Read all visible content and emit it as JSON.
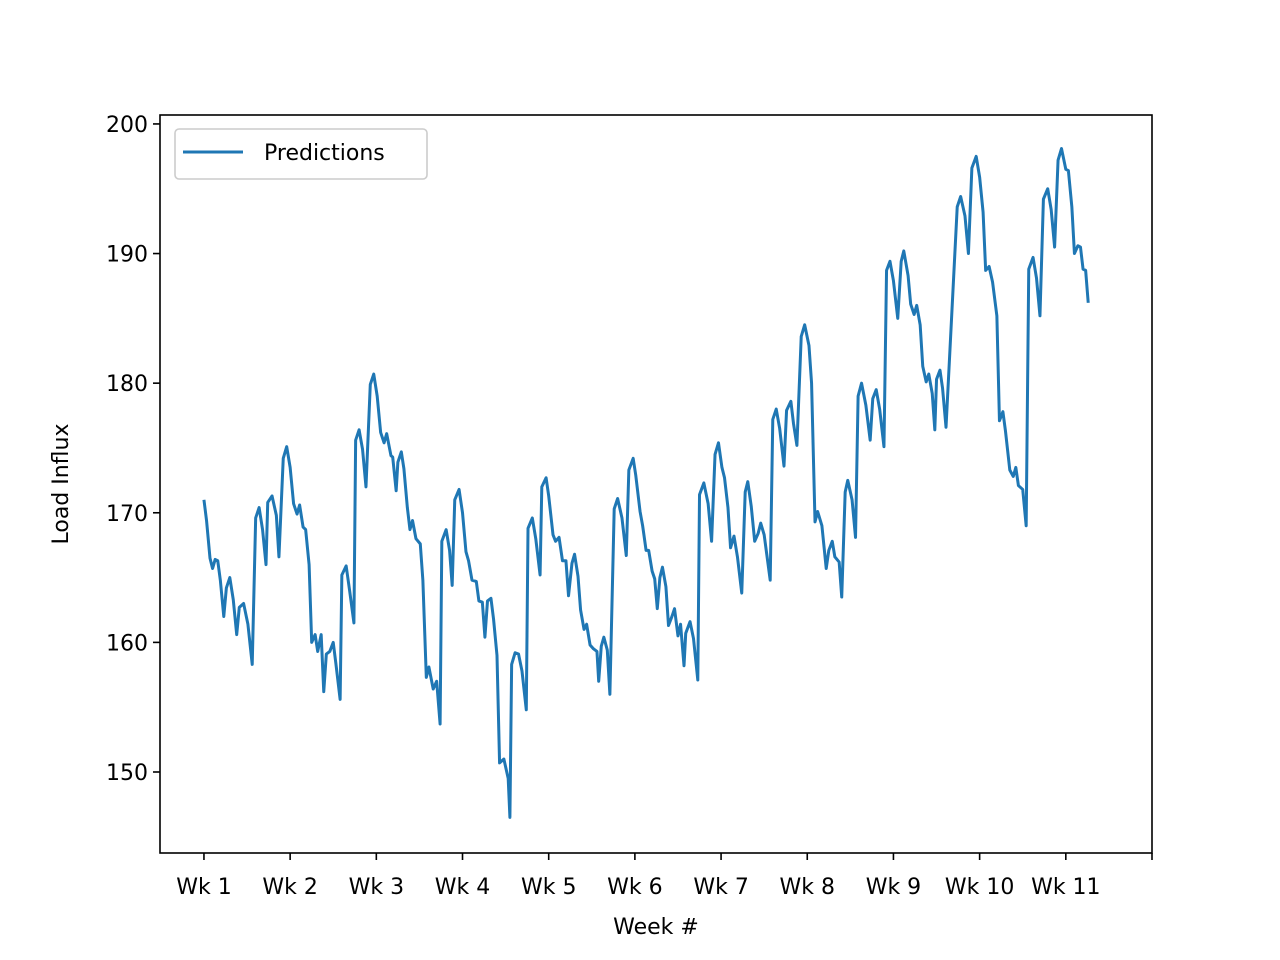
{
  "chart_data": {
    "type": "line",
    "xlabel": "Week #",
    "ylabel": "Load Influx",
    "xlim": [
      -0.51,
      11.0
    ],
    "ylim": [
      143.75,
      200.69
    ],
    "xticks": [
      {
        "value": 0,
        "label": "Wk 1"
      },
      {
        "value": 1,
        "label": "Wk 2"
      },
      {
        "value": 2,
        "label": "Wk 3"
      },
      {
        "value": 3,
        "label": "Wk 4"
      },
      {
        "value": 4,
        "label": "Wk 5"
      },
      {
        "value": 5,
        "label": "Wk 6"
      },
      {
        "value": 6,
        "label": "Wk 7"
      },
      {
        "value": 7,
        "label": "Wk 8"
      },
      {
        "value": 8,
        "label": "Wk 9"
      },
      {
        "value": 9,
        "label": "Wk 10"
      },
      {
        "value": 10,
        "label": "Wk 11"
      },
      {
        "value": 11,
        "label": null
      }
    ],
    "yticks": [
      150,
      160,
      170,
      180,
      190,
      200
    ],
    "legend": "upper left",
    "x": [
      0.0,
      0.03,
      0.07,
      0.1,
      0.13,
      0.16,
      0.19,
      0.23,
      0.26,
      0.3,
      0.34,
      0.38,
      0.41,
      0.46,
      0.51,
      0.56,
      0.6,
      0.64,
      0.68,
      0.72,
      0.74,
      0.79,
      0.84,
      0.87,
      0.92,
      0.96,
      1.0,
      1.04,
      1.08,
      1.11,
      1.15,
      1.18,
      1.22,
      1.25,
      1.29,
      1.32,
      1.36,
      1.39,
      1.42,
      1.46,
      1.5,
      1.53,
      1.58,
      1.6,
      1.65,
      1.69,
      1.74,
      1.76,
      1.8,
      1.84,
      1.88,
      1.93,
      1.97,
      2.01,
      2.05,
      2.09,
      2.12,
      2.17,
      2.19,
      2.23,
      2.25,
      2.29,
      2.32,
      2.36,
      2.39,
      2.42,
      2.46,
      2.51,
      2.54,
      2.58,
      2.61,
      2.66,
      2.7,
      2.74,
      2.76,
      2.81,
      2.85,
      2.88,
      2.91,
      2.96,
      3.0,
      3.04,
      3.07,
      3.11,
      3.16,
      3.19,
      3.23,
      3.26,
      3.29,
      3.33,
      3.36,
      3.4,
      3.43,
      3.48,
      3.53,
      3.55,
      3.57,
      3.61,
      3.65,
      3.69,
      3.74,
      3.76,
      3.81,
      3.85,
      3.9,
      3.92,
      3.97,
      4.0,
      4.05,
      4.08,
      4.12,
      4.16,
      4.2,
      4.23,
      4.27,
      4.3,
      4.34,
      4.37,
      4.41,
      4.44,
      4.48,
      4.52,
      4.56,
      4.58,
      4.61,
      4.64,
      4.68,
      4.71,
      4.76,
      4.8,
      4.85,
      4.9,
      4.93,
      4.98,
      5.01,
      5.06,
      5.09,
      5.13,
      5.16,
      5.2,
      5.23,
      5.26,
      5.29,
      5.32,
      5.36,
      5.39,
      5.43,
      5.46,
      5.5,
      5.53,
      5.57,
      5.59,
      5.64,
      5.68,
      5.73,
      5.75,
      5.8,
      5.85,
      5.89,
      5.93,
      5.97,
      6.01,
      6.04,
      6.08,
      6.11,
      6.15,
      6.19,
      6.24,
      6.28,
      6.31,
      6.35,
      6.39,
      6.43,
      6.46,
      6.5,
      6.53,
      6.57,
      6.6,
      6.64,
      6.68,
      6.73,
      6.76,
      6.81,
      6.84,
      6.88,
      6.93,
      6.97,
      7.02,
      7.05,
      7.09,
      7.12,
      7.17,
      7.22,
      7.25,
      7.29,
      7.32,
      7.37,
      7.4,
      7.44,
      7.47,
      7.52,
      7.56,
      7.59,
      7.63,
      7.68,
      7.73,
      7.76,
      7.8,
      7.84,
      7.89,
      7.92,
      7.96,
      8.0,
      8.05,
      8.09,
      8.12,
      8.17,
      8.2,
      8.24,
      8.27,
      8.31,
      8.34,
      8.38,
      8.41,
      8.45,
      8.48,
      8.5,
      8.54,
      8.57,
      8.61,
      8.74,
      8.78,
      8.83,
      8.87,
      8.91,
      8.96,
      9.0,
      9.04,
      9.07,
      9.11,
      9.15,
      9.2,
      9.23,
      9.27,
      9.3,
      9.35,
      9.39,
      9.42,
      9.45,
      9.5,
      9.54,
      9.57,
      9.62,
      9.66,
      9.7,
      9.74,
      9.79,
      9.83,
      9.87,
      9.91,
      9.95,
      10.0,
      10.03,
      10.07,
      10.1,
      10.14,
      10.17,
      10.2,
      10.23,
      10.26
    ],
    "series": [
      {
        "name": "Predictions",
        "color": "#1f77b4",
        "values": [
          171.0,
          169.4,
          166.5,
          165.7,
          166.4,
          166.3,
          164.8,
          162.0,
          164.2,
          165.0,
          163.3,
          160.6,
          162.7,
          163.0,
          161.4,
          158.3,
          169.6,
          170.4,
          168.7,
          166.0,
          170.8,
          171.3,
          169.8,
          166.6,
          174.2,
          175.1,
          173.5,
          170.7,
          169.9,
          170.6,
          168.9,
          168.7,
          166.0,
          160.0,
          160.6,
          159.3,
          160.6,
          156.2,
          159.1,
          159.3,
          160.0,
          158.4,
          155.6,
          165.2,
          165.9,
          164.0,
          161.5,
          175.6,
          176.4,
          174.9,
          172.0,
          179.9,
          180.7,
          179.0,
          176.2,
          175.4,
          176.1,
          174.4,
          174.3,
          171.7,
          173.9,
          174.7,
          173.4,
          170.4,
          168.7,
          169.4,
          168.0,
          167.6,
          164.8,
          157.3,
          158.1,
          156.4,
          157.0,
          153.7,
          167.8,
          168.7,
          167.1,
          164.4,
          171.0,
          171.8,
          170.0,
          167.0,
          166.3,
          164.8,
          164.7,
          163.2,
          163.1,
          160.4,
          163.2,
          163.4,
          161.8,
          159.0,
          150.7,
          151.0,
          149.5,
          146.5,
          158.3,
          159.2,
          159.1,
          157.8,
          154.8,
          168.8,
          169.6,
          168.0,
          165.2,
          172.0,
          172.7,
          171.3,
          168.3,
          167.8,
          168.1,
          166.3,
          166.3,
          163.6,
          166.1,
          166.8,
          165.1,
          162.5,
          161.0,
          161.4,
          159.8,
          159.5,
          159.3,
          157.0,
          159.7,
          160.4,
          159.4,
          156.0,
          170.3,
          171.1,
          169.6,
          166.7,
          173.3,
          174.2,
          172.9,
          170.1,
          169.0,
          167.1,
          167.1,
          165.5,
          164.9,
          162.6,
          165.0,
          165.8,
          164.3,
          161.3,
          162.0,
          162.6,
          160.5,
          161.4,
          158.2,
          160.7,
          161.6,
          160.3,
          157.1,
          171.4,
          172.3,
          170.7,
          167.8,
          174.5,
          175.4,
          173.5,
          172.7,
          170.4,
          167.3,
          168.2,
          166.6,
          163.8,
          171.6,
          172.4,
          170.5,
          167.8,
          168.4,
          169.2,
          168.3,
          166.8,
          164.8,
          177.2,
          178.0,
          176.5,
          173.6,
          177.9,
          178.6,
          176.9,
          175.2,
          183.6,
          184.5,
          182.9,
          180.0,
          169.3,
          170.1,
          169.0,
          165.7,
          167.1,
          167.8,
          166.6,
          166.2,
          163.5,
          171.6,
          172.5,
          171.0,
          168.1,
          179.0,
          180.0,
          178.3,
          175.6,
          178.8,
          179.5,
          178.0,
          175.1,
          188.7,
          189.4,
          187.9,
          185.0,
          189.4,
          190.2,
          188.3,
          186.1,
          185.3,
          186.0,
          184.5,
          181.3,
          180.1,
          180.7,
          179.2,
          176.4,
          180.3,
          181.0,
          179.6,
          176.6,
          193.6,
          194.4,
          192.9,
          190.0,
          196.6,
          197.5,
          195.9,
          193.2,
          188.7,
          189.0,
          187.8,
          185.2,
          177.1,
          177.8,
          176.3,
          173.3,
          172.8,
          173.5,
          172.1,
          171.8,
          169.0,
          188.8,
          189.7,
          188.1,
          185.2,
          194.2,
          195.0,
          193.4,
          190.5,
          197.2,
          198.1,
          196.5,
          196.4,
          193.6,
          190.0,
          190.6,
          190.5,
          188.8,
          188.7,
          186.2
        ]
      }
    ]
  }
}
